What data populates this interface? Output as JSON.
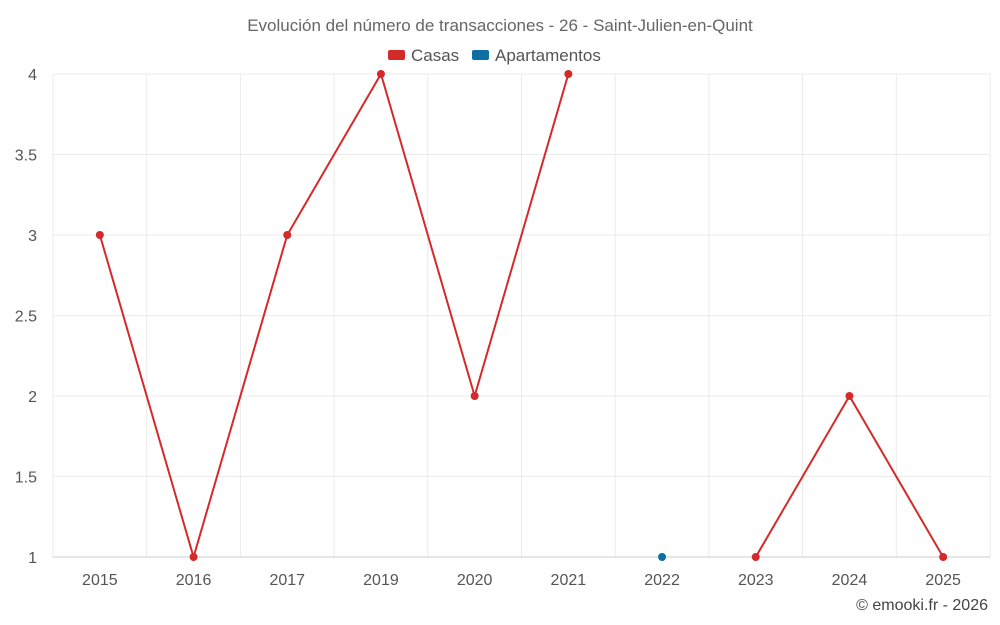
{
  "chart_data": {
    "type": "line",
    "title": "Evolución del número de transacciones - 26 - Saint-Julien-en-Quint",
    "categories": [
      "2015",
      "2016",
      "2017",
      "2019",
      "2020",
      "2021",
      "2022",
      "2023",
      "2024",
      "2025"
    ],
    "ylim": [
      1,
      4
    ],
    "yticks": [
      "1",
      "1.5",
      "2",
      "2.5",
      "3",
      "3.5",
      "4"
    ],
    "xlabel": "",
    "ylabel": "",
    "grid": true,
    "legend_position": "top-center",
    "series": [
      {
        "name": "Casas",
        "color": "#d42a2a",
        "values": [
          3,
          1,
          3,
          4,
          2,
          4,
          null,
          1,
          2,
          1
        ]
      },
      {
        "name": "Apartamentos",
        "color": "#0f6ea3",
        "values": [
          null,
          null,
          null,
          null,
          null,
          null,
          1,
          null,
          null,
          null
        ]
      }
    ]
  },
  "credit": "© emooki.fr - 2026"
}
